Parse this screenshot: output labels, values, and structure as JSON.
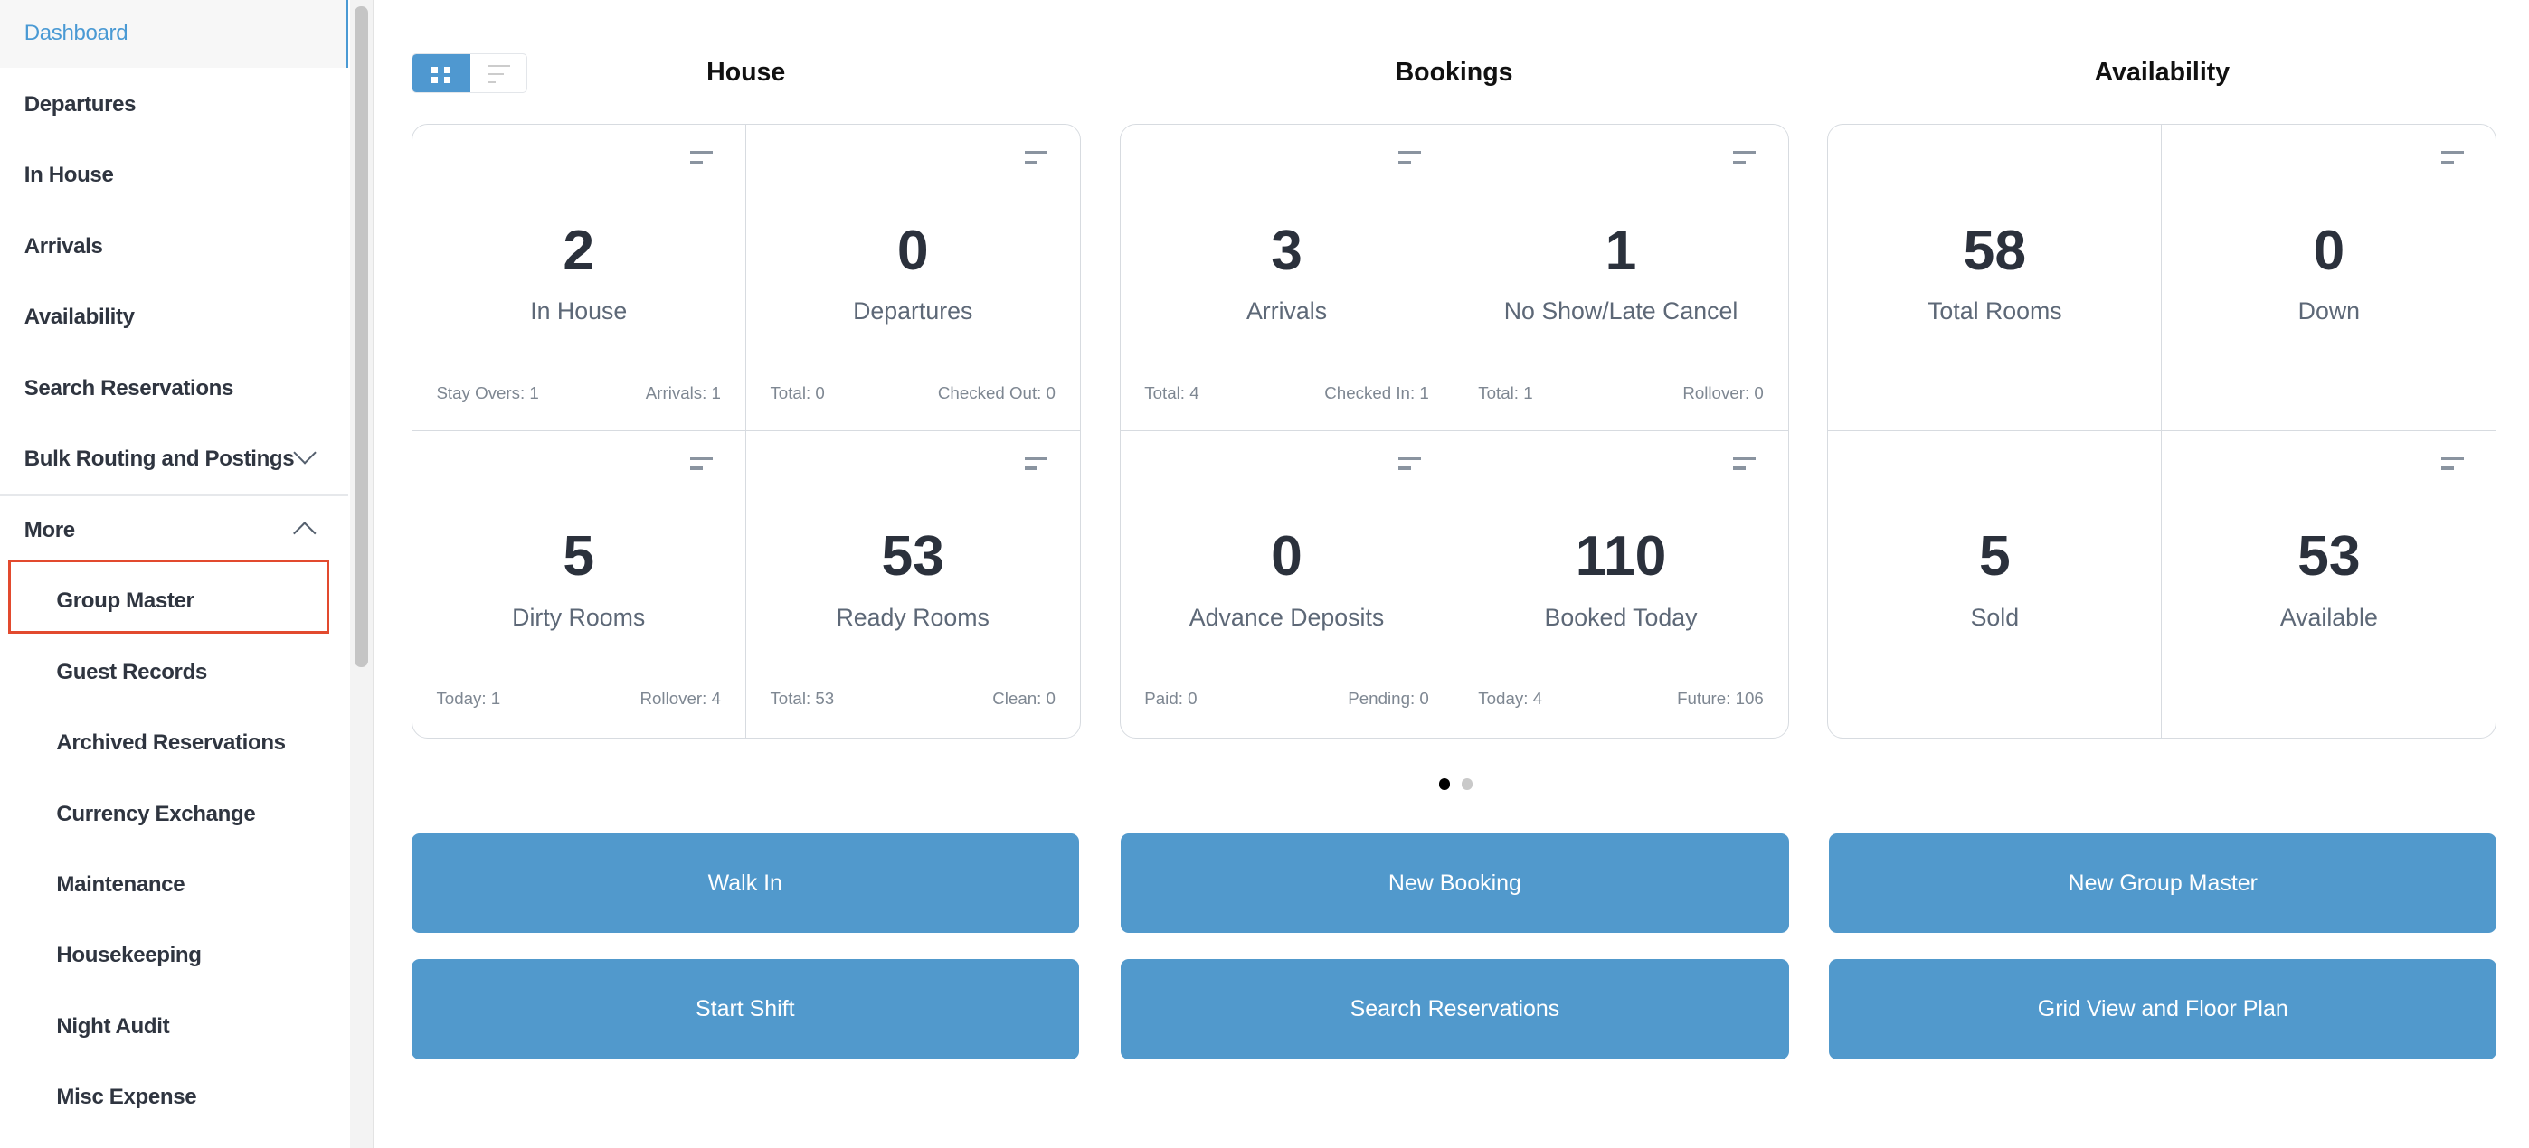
{
  "sidebar": {
    "items": [
      {
        "label": "Dashboard",
        "active": true
      },
      {
        "label": "Departures"
      },
      {
        "label": "In House"
      },
      {
        "label": "Arrivals"
      },
      {
        "label": "Availability"
      },
      {
        "label": "Search Reservations"
      },
      {
        "label": "Bulk Routing and Postings",
        "chevron": "chevron-down-icon"
      },
      {
        "label": "More",
        "chevron": "chevron-up-icon"
      },
      {
        "label": "Group Master",
        "sub": true,
        "highlighted": true
      },
      {
        "label": "Guest Records",
        "sub": true
      },
      {
        "label": "Archived Reservations",
        "sub": true
      },
      {
        "label": "Currency Exchange",
        "sub": true
      },
      {
        "label": "Maintenance",
        "sub": true
      },
      {
        "label": "Housekeeping",
        "sub": true
      },
      {
        "label": "Night Audit",
        "sub": true
      },
      {
        "label": "Misc Expense",
        "sub": true
      }
    ]
  },
  "view_toggle": {
    "active": "grid-icon",
    "inactive": "list-icon"
  },
  "sections": [
    {
      "title": "House",
      "cells": [
        {
          "value": "2",
          "label": "In House",
          "left": "Stay Overs: 1",
          "right": "Arrivals: 1",
          "menu": true
        },
        {
          "value": "0",
          "label": "Departures",
          "left": "Total: 0",
          "right": "Checked Out: 0",
          "menu": true
        },
        {
          "value": "5",
          "label": "Dirty Rooms",
          "left": "Today: 1",
          "right": "Rollover: 4",
          "menu": true
        },
        {
          "value": "53",
          "label": "Ready Rooms",
          "left": "Total: 53",
          "right": "Clean: 0",
          "menu": true
        }
      ]
    },
    {
      "title": "Bookings",
      "cells": [
        {
          "value": "3",
          "label": "Arrivals",
          "left": "Total: 4",
          "right": "Checked In: 1",
          "menu": true
        },
        {
          "value": "1",
          "label": "No Show/Late Cancel",
          "left": "Total: 1",
          "right": "Rollover: 0",
          "menu": true
        },
        {
          "value": "0",
          "label": "Advance Deposits",
          "left": "Paid: 0",
          "right": "Pending: 0",
          "menu": true
        },
        {
          "value": "110",
          "label": "Booked Today",
          "left": "Today: 4",
          "right": "Future: 106",
          "menu": true
        }
      ]
    },
    {
      "title": "Availability",
      "cells": [
        {
          "value": "58",
          "label": "Total Rooms",
          "menu": false
        },
        {
          "value": "0",
          "label": "Down",
          "menu": true
        },
        {
          "value": "5",
          "label": "Sold",
          "menu": false
        },
        {
          "value": "53",
          "label": "Available",
          "menu": true
        }
      ]
    }
  ],
  "pager": {
    "pages": 2,
    "current": 1
  },
  "buttons": [
    [
      "Walk In",
      "New Booking",
      "New Group Master"
    ],
    [
      "Start Shift",
      "Search Reservations",
      "Grid View and Floor Plan"
    ]
  ],
  "colors": {
    "accent": "#4a9ad4",
    "button": "#5199cc",
    "highlight": "#e24a2e",
    "text": "#2b313c"
  }
}
